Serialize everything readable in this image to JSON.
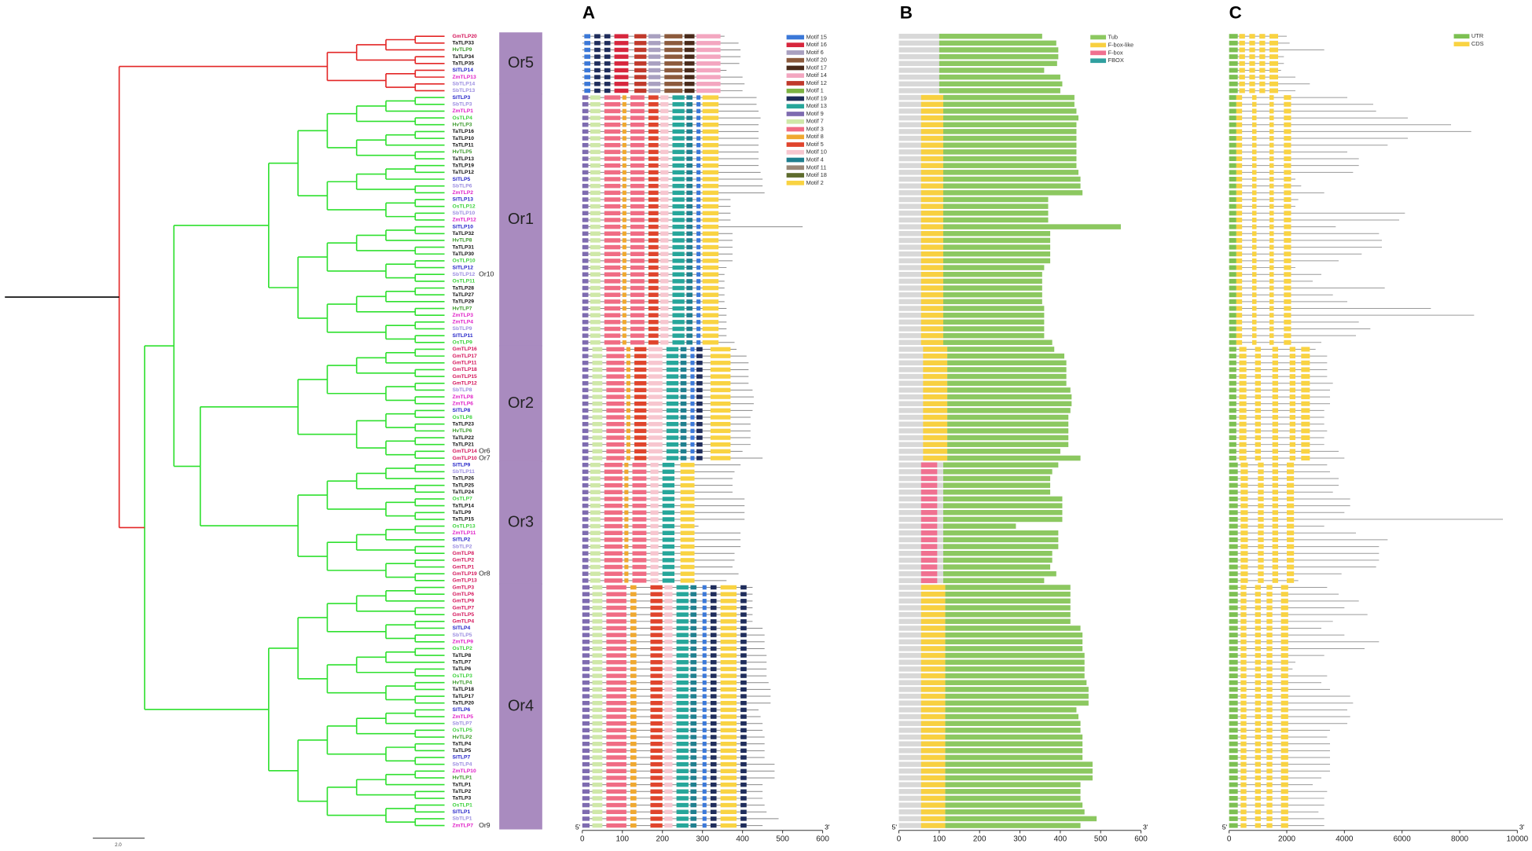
{
  "panel_labels": [
    "A",
    "B",
    "C"
  ],
  "scale_bar": "2.0",
  "species_colors": {
    "Gm": "#d4145a",
    "Ta": "#111111",
    "Hv": "#3a9a2a",
    "Sl": "#2323c8",
    "Zm": "#e020c8",
    "Sb": "#9a8ce0",
    "Os": "#3cd23c"
  },
  "groups": [
    {
      "label": "Or5",
      "tree_color": "#e32626",
      "genes": [
        "GmTLP20",
        "TaTLP33",
        "HvTLP9",
        "TaTLP34",
        "TaTLP35",
        "SlTLP14",
        "ZmTLP13",
        "SbTLP14",
        "SbTLP13"
      ],
      "notes": [],
      "protein_lengths": [
        355,
        390,
        395,
        395,
        392,
        360,
        400,
        405,
        400
      ],
      "gene_lengths": [
        2000,
        2100,
        3300,
        1900,
        1900,
        1800,
        2300,
        2800,
        2300
      ],
      "motifs": [
        [
          0,
          5,
          20
        ],
        [
          8,
          30,
          45
        ],
        [
          8,
          55,
          70
        ],
        [
          1,
          80,
          115
        ],
        [
          6,
          130,
          160
        ],
        [
          2,
          165,
          195
        ],
        [
          3,
          205,
          250
        ],
        [
          4,
          255,
          280
        ],
        [
          5,
          285,
          345
        ]
      ],
      "fbox": null,
      "tub_start": 100,
      "exons": [
        [
          0,
          0,
          300
        ],
        [
          1,
          350,
          550
        ],
        [
          1,
          700,
          900
        ],
        [
          1,
          1050,
          1250
        ],
        [
          1,
          1400,
          1700
        ]
      ]
    },
    {
      "label": "Or1",
      "tree_color": "#2fe02f",
      "genes": [
        "SlTLP3",
        "SbTLP3",
        "ZmTLP1",
        "OsTLP4",
        "HvTLP3",
        "TaTLP16",
        "TaTLP10",
        "TaTLP11",
        "HvTLP5",
        "TaTLP13",
        "TaTLP19",
        "TaTLP12",
        "SlTLP5",
        "SbTLP6",
        "ZmTLP2",
        "SlTLP13",
        "OsTLP12",
        "SbTLP10",
        "ZmTLP12",
        "SlTLP10",
        "TaTLP32",
        "HvTLP8",
        "TaTLP31",
        "TaTLP30",
        "OsTLP10",
        "SlTLP12",
        "SbTLP12",
        "OsTLP11",
        "TaTLP28",
        "TaTLP27",
        "TaTLP29",
        "HvTLP7",
        "ZmTLP3",
        "ZmTLP4",
        "SbTLP9",
        "SlTLP11",
        "OsTLP9"
      ],
      "notes": [
        {
          "gene": 26,
          "text": "Or10"
        }
      ],
      "protein_lengths": [
        435,
        435,
        440,
        445,
        440,
        440,
        440,
        440,
        440,
        440,
        440,
        445,
        450,
        450,
        455,
        370,
        370,
        370,
        370,
        550,
        375,
        375,
        375,
        375,
        375,
        360,
        355,
        355,
        355,
        355,
        355,
        360,
        360,
        360,
        360,
        360,
        380
      ],
      "gene_lengths": [
        4100,
        5000,
        5100,
        6200,
        7700,
        8400,
        6200,
        5500,
        4100,
        4500,
        4500,
        4300,
        2300,
        2500,
        3300,
        2400,
        2300,
        6100,
        5900,
        3700,
        5200,
        5300,
        5300,
        4600,
        3800,
        2300,
        3200,
        2900,
        5400,
        3600,
        4100,
        7000,
        8500,
        4500,
        4900,
        4400,
        3200
      ],
      "motifs": [
        [
          10,
          0,
          15
        ],
        [
          11,
          20,
          45
        ],
        [
          12,
          55,
          95
        ],
        [
          13,
          100,
          110
        ],
        [
          12,
          120,
          155
        ],
        [
          14,
          165,
          190
        ],
        [
          15,
          195,
          215
        ],
        [
          9,
          225,
          255
        ],
        [
          16,
          260,
          275
        ],
        [
          0,
          285,
          295
        ],
        [
          19,
          300,
          340
        ]
      ],
      "fbox": [
        1,
        55,
        110
      ],
      "tub_start": 110,
      "exons": [
        [
          0,
          0,
          250
        ],
        [
          1,
          250,
          450
        ],
        [
          1,
          800,
          950
        ],
        [
          1,
          1400,
          1550
        ],
        [
          1,
          1900,
          2150
        ]
      ]
    },
    {
      "label": "Or2",
      "tree_color": "#2fe02f",
      "genes": [
        "GmTLP16",
        "GmTLP17",
        "GmTLP11",
        "GmTLP18",
        "GmTLP15",
        "GmTLP12",
        "SbTLP8",
        "ZmTLP8",
        "ZmTLP6",
        "SlTLP8",
        "OsTLP8",
        "TaTLP23",
        "HvTLP6",
        "TaTLP22",
        "TaTLP21",
        "GmTLP14",
        "GmTLP10"
      ],
      "notes": [
        {
          "gene": 15,
          "text": "Or6"
        },
        {
          "gene": 16,
          "text": "Or7"
        }
      ],
      "protein_lengths": [
        385,
        410,
        415,
        415,
        415,
        415,
        425,
        428,
        428,
        425,
        420,
        420,
        420,
        420,
        420,
        400,
        450
      ],
      "gene_lengths": [
        3000,
        3400,
        3400,
        3400,
        3400,
        3600,
        3500,
        3500,
        3500,
        3300,
        3300,
        3300,
        3400,
        3300,
        3300,
        3800,
        4000
      ],
      "motifs": [
        [
          10,
          0,
          15
        ],
        [
          11,
          25,
          50
        ],
        [
          12,
          60,
          105
        ],
        [
          13,
          110,
          120
        ],
        [
          14,
          130,
          160
        ],
        [
          15,
          165,
          200
        ],
        [
          9,
          210,
          240
        ],
        [
          16,
          245,
          260
        ],
        [
          0,
          270,
          280
        ],
        [
          8,
          285,
          300
        ],
        [
          19,
          320,
          370
        ]
      ],
      "fbox": [
        1,
        60,
        120
      ],
      "tub_start": 120,
      "exons": [
        [
          0,
          0,
          250
        ],
        [
          1,
          350,
          600
        ],
        [
          1,
          900,
          1100
        ],
        [
          1,
          1500,
          1700
        ],
        [
          1,
          2100,
          2300
        ],
        [
          1,
          2500,
          2800
        ]
      ]
    },
    {
      "label": "Or3",
      "tree_color": "#2fe02f",
      "genes": [
        "SlTLP9",
        "SbTLP11",
        "TaTLP26",
        "TaTLP25",
        "TaTLP24",
        "OsTLP7",
        "TaTLP14",
        "TaTLP9",
        "TaTLP15",
        "OsTLP13",
        "ZmTLP11",
        "SlTLP2",
        "SbTLP2",
        "GmTLP8",
        "GmTLP2",
        "GmTLP1",
        "GmTLP19",
        "GmTLP13"
      ],
      "notes": [
        {
          "gene": 16,
          "text": "Or8"
        }
      ],
      "protein_lengths": [
        395,
        380,
        375,
        375,
        375,
        405,
        405,
        405,
        405,
        290,
        395,
        395,
        395,
        380,
        380,
        375,
        390,
        360
      ],
      "gene_lengths": [
        3400,
        3500,
        3800,
        3800,
        3600,
        4200,
        4200,
        4000,
        9500,
        3300,
        4400,
        5500,
        5200,
        5200,
        5200,
        5100,
        3900,
        2400
      ],
      "motifs": [
        [
          10,
          0,
          15
        ],
        [
          11,
          20,
          45
        ],
        [
          12,
          55,
          100
        ],
        [
          13,
          105,
          115
        ],
        [
          12,
          125,
          160
        ],
        [
          15,
          170,
          190
        ],
        [
          9,
          200,
          230
        ],
        [
          19,
          245,
          280
        ]
      ],
      "fbox": [
        2,
        55,
        95
      ],
      "tub_start": 110,
      "exons": [
        [
          0,
          0,
          300
        ],
        [
          1,
          400,
          650
        ],
        [
          1,
          1000,
          1200
        ],
        [
          1,
          1500,
          1700
        ],
        [
          1,
          2000,
          2250
        ]
      ]
    },
    {
      "label": "Or4",
      "tree_color": "#2fe02f",
      "genes": [
        "GmTLP3",
        "GmTLP6",
        "GmTLP9",
        "GmTLP7",
        "GmTLP5",
        "GmTLP4",
        "SlTLP4",
        "SbTLP5",
        "ZmTLP9",
        "OsTLP2",
        "TaTLP8",
        "TaTLP7",
        "TaTLP6",
        "OsTLP3",
        "HvTLP4",
        "TaTLP18",
        "TaTLP17",
        "TaTLP20",
        "SlTLP6",
        "ZmTLP5",
        "SbTLP7",
        "OsTLP5",
        "HvTLP2",
        "TaTLP4",
        "TaTLP5",
        "SlTLP7",
        "SbTLP4",
        "ZmTLP10",
        "HvTLP1",
        "TaTLP1",
        "TaTLP2",
        "TaTLP3",
        "OsTLP1",
        "SlTLP1",
        "SbTLP1",
        "ZmTLP7"
      ],
      "notes": [
        {
          "gene": 35,
          "text": "Or9"
        }
      ],
      "protein_lengths": [
        425,
        425,
        425,
        425,
        425,
        425,
        450,
        455,
        455,
        455,
        460,
        460,
        460,
        460,
        465,
        470,
        470,
        470,
        440,
        445,
        450,
        450,
        455,
        455,
        455,
        455,
        480,
        480,
        480,
        450,
        450,
        450,
        455,
        460,
        490,
        450
      ],
      "gene_lengths": [
        3400,
        3800,
        4500,
        4000,
        4800,
        3600,
        3200,
        4000,
        5200,
        4700,
        3300,
        2300,
        2200,
        3400,
        3200,
        3500,
        4200,
        4300,
        4100,
        4200,
        4100,
        3500,
        3400,
        3500,
        3500,
        3500,
        3500,
        3500,
        3200,
        2900,
        3400,
        3300,
        3300,
        3100,
        3300,
        3300
      ],
      "motifs": [
        [
          10,
          0,
          18
        ],
        [
          11,
          25,
          50
        ],
        [
          12,
          60,
          110
        ],
        [
          13,
          120,
          135
        ],
        [
          14,
          170,
          200
        ],
        [
          15,
          205,
          225
        ],
        [
          9,
          235,
          265
        ],
        [
          16,
          270,
          285
        ],
        [
          0,
          300,
          310
        ],
        [
          8,
          320,
          335
        ],
        [
          19,
          345,
          385
        ],
        [
          8,
          395,
          410
        ]
      ],
      "fbox": [
        1,
        55,
        115
      ],
      "tub_start": 115,
      "exons": [
        [
          0,
          0,
          300
        ],
        [
          1,
          400,
          600
        ],
        [
          1,
          900,
          1100
        ],
        [
          1,
          1300,
          1500
        ],
        [
          1,
          1800,
          2050
        ]
      ]
    }
  ],
  "motif_legend": {
    "names": [
      "Motif 15",
      "Motif 16",
      "Motif 6",
      "Motif 20",
      "Motif 17",
      "Motif 14",
      "Motif 12",
      "Motif 1",
      "Motif 19",
      "Motif 13",
      "Motif 9",
      "Motif 7",
      "Motif 3",
      "Motif 8",
      "Motif 5",
      "Motif 10",
      "Motif 4",
      "Motif 11",
      "Motif 18",
      "Motif 2"
    ],
    "colors": [
      "#3b78d8",
      "#d7263d",
      "#a9a0c0",
      "#8c5a3c",
      "#4a2a1a",
      "#f3a6c0",
      "#c0392b",
      "#7cb342",
      "#1f2d5c",
      "#26a69a",
      "#7e6bb0",
      "#cfe8a8",
      "#f06c84",
      "#f0a830",
      "#e0442c",
      "#f7c6cf",
      "#1f7f8f",
      "#9a8878",
      "#5d6b2c",
      "#f9d342"
    ]
  },
  "domain_legend": {
    "names": [
      "Tub",
      "F-box-like",
      "F-box",
      "FBOX"
    ],
    "colors": [
      "#8cc860",
      "#f8d040",
      "#f07090",
      "#30a0a0"
    ],
    "background": "#d8d8d8"
  },
  "structure_legend": {
    "names": [
      "UTR",
      "CDS"
    ],
    "colors": [
      "#7cc052",
      "#f9d342"
    ],
    "intron_color": "#9a9a9a"
  },
  "axes": {
    "A": {
      "ticks": [
        0,
        100,
        200,
        300,
        400,
        500,
        600
      ],
      "ends": [
        "5'",
        "3'"
      ]
    },
    "B": {
      "ticks": [
        0,
        100,
        200,
        300,
        400,
        500,
        600
      ],
      "ends": [
        "5'",
        "3'"
      ]
    },
    "C": {
      "ticks": [
        0,
        2000,
        4000,
        6000,
        8000,
        10000
      ],
      "ends": [
        "5'",
        "3'"
      ]
    }
  }
}
